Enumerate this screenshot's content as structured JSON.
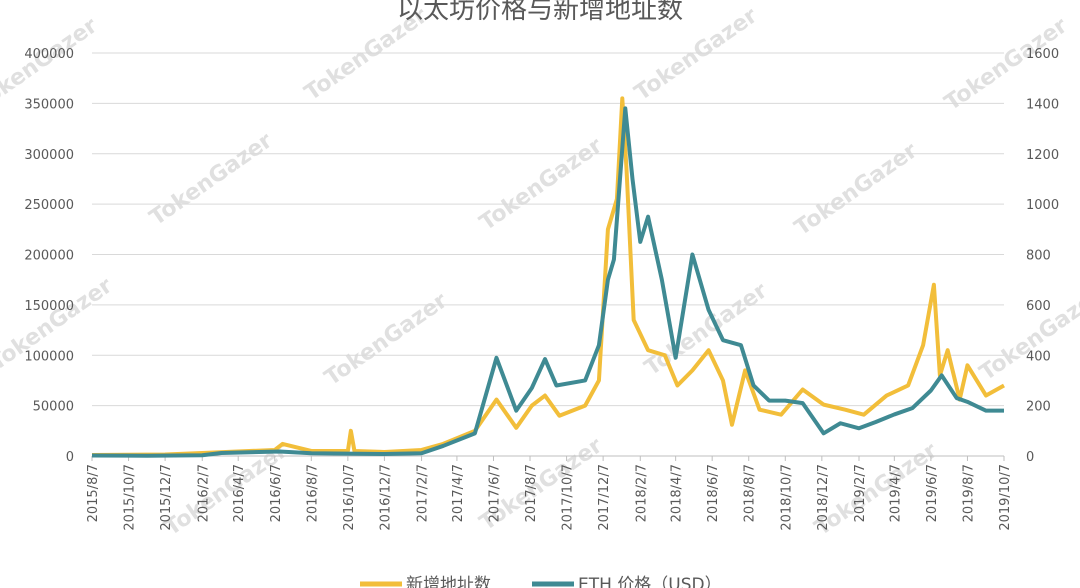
{
  "chart_data": {
    "type": "line",
    "title": "以太坊价格与新增地址数",
    "watermark": "TokenGazer",
    "x_ticks": [
      "2015/8/7",
      "2015/10/7",
      "2015/12/7",
      "2016/2/7",
      "2016/4/7",
      "2016/6/7",
      "2016/8/7",
      "2016/10/7",
      "2016/12/7",
      "2017/2/7",
      "2017/4/7",
      "2017/6/7",
      "2017/8/7",
      "2017/10/7",
      "2017/12/7",
      "2018/2/7",
      "2018/4/7",
      "2018/6/7",
      "2018/8/7",
      "2018/10/7",
      "2018/12/7",
      "2019/2/7",
      "2019/4/7",
      "2019/6/7",
      "2019/8/7",
      "2019/10/7"
    ],
    "xlim": [
      "2015-08-07",
      "2019-10-07"
    ],
    "y_left": {
      "ticks": [
        "0",
        "50000",
        "100000",
        "150000",
        "200000",
        "250000",
        "300000",
        "350000",
        "400000"
      ],
      "ylim": [
        0,
        400000
      ]
    },
    "y_right": {
      "ticks": [
        "0",
        "200",
        "400",
        "600",
        "800",
        "1000",
        "1200",
        "1400",
        "1600"
      ],
      "ylim": [
        0,
        1600
      ]
    },
    "grid": true,
    "legend_position": "bottom",
    "series": [
      {
        "name": "新增地址数",
        "axis": "left",
        "color": "#F2BE3A",
        "points": [
          [
            "2015-08-07",
            1000
          ],
          [
            "2015-12-07",
            1500
          ],
          [
            "2016-02-07",
            3000
          ],
          [
            "2016-06-07",
            6000
          ],
          [
            "2016-06-20",
            12000
          ],
          [
            "2016-08-07",
            5000
          ],
          [
            "2016-10-07",
            5000
          ],
          [
            "2016-10-12",
            25000
          ],
          [
            "2016-10-18",
            5000
          ],
          [
            "2016-12-07",
            4000
          ],
          [
            "2017-02-07",
            6000
          ],
          [
            "2017-03-15",
            12000
          ],
          [
            "2017-05-07",
            25000
          ],
          [
            "2017-06-12",
            56000
          ],
          [
            "2017-07-15",
            28000
          ],
          [
            "2017-08-10",
            50000
          ],
          [
            "2017-09-01",
            60000
          ],
          [
            "2017-09-25",
            40000
          ],
          [
            "2017-11-07",
            50000
          ],
          [
            "2017-11-30",
            75000
          ],
          [
            "2017-12-15",
            225000
          ],
          [
            "2017-12-30",
            255000
          ],
          [
            "2018-01-08",
            355000
          ],
          [
            "2018-01-15",
            285000
          ],
          [
            "2018-01-27",
            135000
          ],
          [
            "2018-02-20",
            105000
          ],
          [
            "2018-03-20",
            100000
          ],
          [
            "2018-04-10",
            70000
          ],
          [
            "2018-05-05",
            85000
          ],
          [
            "2018-06-01",
            105000
          ],
          [
            "2018-06-25",
            75000
          ],
          [
            "2018-07-10",
            31000
          ],
          [
            "2018-08-01",
            85000
          ],
          [
            "2018-08-25",
            46000
          ],
          [
            "2018-09-30",
            41000
          ],
          [
            "2018-11-05",
            66000
          ],
          [
            "2018-12-10",
            51000
          ],
          [
            "2019-01-15",
            46000
          ],
          [
            "2019-02-15",
            41000
          ],
          [
            "2019-03-25",
            60000
          ],
          [
            "2019-04-30",
            70000
          ],
          [
            "2019-05-25",
            110000
          ],
          [
            "2019-06-12",
            170000
          ],
          [
            "2019-06-22",
            80000
          ],
          [
            "2019-07-05",
            105000
          ],
          [
            "2019-07-25",
            56000
          ],
          [
            "2019-08-07",
            90000
          ],
          [
            "2019-09-07",
            60000
          ],
          [
            "2019-10-07",
            70000
          ]
        ]
      },
      {
        "name": "ETH 价格（USD）",
        "axis": "right",
        "color": "#3F8A93",
        "points": [
          [
            "2015-08-07",
            2
          ],
          [
            "2015-11-07",
            1
          ],
          [
            "2016-02-07",
            3
          ],
          [
            "2016-03-10",
            12
          ],
          [
            "2016-06-15",
            18
          ],
          [
            "2016-08-07",
            11
          ],
          [
            "2016-12-07",
            8
          ],
          [
            "2017-02-07",
            11
          ],
          [
            "2017-03-15",
            40
          ],
          [
            "2017-05-07",
            90
          ],
          [
            "2017-06-12",
            390
          ],
          [
            "2017-07-15",
            180
          ],
          [
            "2017-08-10",
            270
          ],
          [
            "2017-09-01",
            385
          ],
          [
            "2017-09-20",
            280
          ],
          [
            "2017-11-07",
            300
          ],
          [
            "2017-11-30",
            440
          ],
          [
            "2017-12-15",
            700
          ],
          [
            "2017-12-25",
            780
          ],
          [
            "2018-01-13",
            1380
          ],
          [
            "2018-01-25",
            1100
          ],
          [
            "2018-02-07",
            850
          ],
          [
            "2018-02-20",
            950
          ],
          [
            "2018-03-15",
            700
          ],
          [
            "2018-04-07",
            390
          ],
          [
            "2018-05-05",
            800
          ],
          [
            "2018-06-01",
            580
          ],
          [
            "2018-06-25",
            460
          ],
          [
            "2018-07-25",
            440
          ],
          [
            "2018-08-15",
            280
          ],
          [
            "2018-09-10",
            220
          ],
          [
            "2018-10-07",
            220
          ],
          [
            "2018-11-05",
            210
          ],
          [
            "2018-12-10",
            90
          ],
          [
            "2019-01-07",
            130
          ],
          [
            "2019-02-07",
            110
          ],
          [
            "2019-03-07",
            135
          ],
          [
            "2019-04-07",
            165
          ],
          [
            "2019-05-07",
            190
          ],
          [
            "2019-06-07",
            260
          ],
          [
            "2019-06-25",
            320
          ],
          [
            "2019-07-20",
            230
          ],
          [
            "2019-08-07",
            215
          ],
          [
            "2019-09-07",
            180
          ],
          [
            "2019-10-07",
            180
          ]
        ]
      }
    ]
  }
}
